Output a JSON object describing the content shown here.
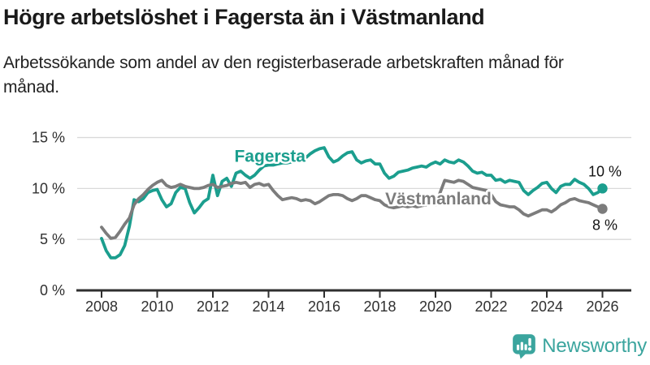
{
  "page": {
    "title": "Högre arbetslöshet i Fagersta än i Västmanland",
    "subtitle": "Arbetssökande som andel av den registerbaserade arbetskraften månad för månad."
  },
  "footer": {
    "brand": "Newsworthy",
    "logo_icon": "bar-chart-speech-bubble-icon",
    "brand_color": "#3ba59e"
  },
  "chart_data": {
    "type": "line",
    "title": "Högre arbetslöshet i Fagersta än i Västmanland",
    "subtitle": "Arbetssökande som andel av den registerbaserade arbetskraften månad för månad.",
    "xlabel": "",
    "ylabel": "",
    "unit": "%",
    "x_start": 2008,
    "x_step_years": 0.1666667,
    "xlim": [
      2007.1,
      2027.05
    ],
    "ylim": [
      0,
      15.5
    ],
    "grid": "horizontal",
    "grid_color": "#d9d9d9",
    "axis_color": "#2f2f2f",
    "legend_position": "inline-labels",
    "yticks": [
      {
        "value": 0,
        "label": "0 %"
      },
      {
        "value": 5,
        "label": "5 %"
      },
      {
        "value": 10,
        "label": "10 %"
      },
      {
        "value": 15,
        "label": "15 %"
      }
    ],
    "xticks": [
      {
        "value": 2008,
        "label": "2008"
      },
      {
        "value": 2010,
        "label": "2010"
      },
      {
        "value": 2012,
        "label": "2012"
      },
      {
        "value": 2014,
        "label": "2014"
      },
      {
        "value": 2016,
        "label": "2016"
      },
      {
        "value": 2018,
        "label": "2018"
      },
      {
        "value": 2020,
        "label": "2020"
      },
      {
        "value": 2022,
        "label": "2022"
      },
      {
        "value": 2024,
        "label": "2024"
      },
      {
        "value": 2026,
        "label": "2026"
      }
    ],
    "series": [
      {
        "name": "Fagersta",
        "color": "#1b9e8e",
        "end_label": "10 %",
        "end_value": 10.0,
        "label_pos": {
          "x": 2014.05,
          "y": 12.6
        },
        "values": [
          5.1,
          3.9,
          3.2,
          3.2,
          3.5,
          4.4,
          6.3,
          8.9,
          8.7,
          9.0,
          9.6,
          9.8,
          9.9,
          8.9,
          8.2,
          8.5,
          9.6,
          10.1,
          10.0,
          8.6,
          7.6,
          8.1,
          8.7,
          9.0,
          11.3,
          9.3,
          10.7,
          11.0,
          10.2,
          11.5,
          11.7,
          11.3,
          11.0,
          11.3,
          11.8,
          12.2,
          12.3,
          12.3,
          12.4,
          12.5,
          12.5,
          12.6,
          12.7,
          12.9,
          13.0,
          13.4,
          13.7,
          13.9,
          14.0,
          13.1,
          12.6,
          12.8,
          13.2,
          13.5,
          13.6,
          12.8,
          12.5,
          12.7,
          12.8,
          12.4,
          12.4,
          11.5,
          11.0,
          11.2,
          11.6,
          11.7,
          11.8,
          12.0,
          12.1,
          12.2,
          12.1,
          12.4,
          12.6,
          12.4,
          12.8,
          12.6,
          12.5,
          12.8,
          12.6,
          12.2,
          11.7,
          11.5,
          11.6,
          11.3,
          11.3,
          10.8,
          10.9,
          10.6,
          10.8,
          10.7,
          10.6,
          9.8,
          9.4,
          9.8,
          10.1,
          10.5,
          10.6,
          10.0,
          9.6,
          10.2,
          10.4,
          10.4,
          10.9,
          10.6,
          10.4,
          10.0,
          9.4,
          9.6,
          10.0
        ]
      },
      {
        "name": "Västmanland",
        "color": "#7c7c7c",
        "end_label": "8 %",
        "end_value": 8.0,
        "label_pos": {
          "x": 2020.1,
          "y": 8.45
        },
        "values": [
          6.2,
          5.6,
          5.1,
          5.2,
          5.8,
          6.5,
          7.1,
          8.4,
          9.0,
          9.4,
          9.9,
          10.3,
          10.6,
          10.8,
          10.3,
          10.1,
          10.2,
          10.4,
          10.2,
          10.1,
          10.0,
          10.0,
          10.1,
          10.3,
          10.4,
          10.1,
          10.2,
          10.3,
          10.5,
          10.6,
          10.5,
          10.6,
          10.1,
          10.4,
          10.5,
          10.3,
          10.4,
          9.8,
          9.3,
          8.9,
          9.0,
          9.1,
          9.0,
          8.8,
          8.9,
          8.8,
          8.5,
          8.7,
          9.0,
          9.3,
          9.4,
          9.4,
          9.3,
          9.0,
          8.8,
          9.0,
          9.3,
          9.3,
          9.1,
          8.9,
          8.8,
          8.4,
          8.2,
          8.1,
          8.2,
          8.3,
          8.2,
          8.3,
          8.2,
          8.3,
          8.4,
          8.5,
          8.4,
          9.6,
          10.8,
          10.7,
          10.6,
          10.8,
          10.7,
          10.4,
          10.1,
          10.0,
          9.9,
          9.8,
          9.4,
          8.7,
          8.4,
          8.3,
          8.2,
          8.2,
          7.9,
          7.5,
          7.3,
          7.5,
          7.7,
          7.9,
          7.9,
          7.7,
          8.0,
          8.4,
          8.6,
          8.9,
          9.0,
          8.8,
          8.7,
          8.6,
          8.4,
          8.2,
          8.0
        ]
      }
    ]
  }
}
